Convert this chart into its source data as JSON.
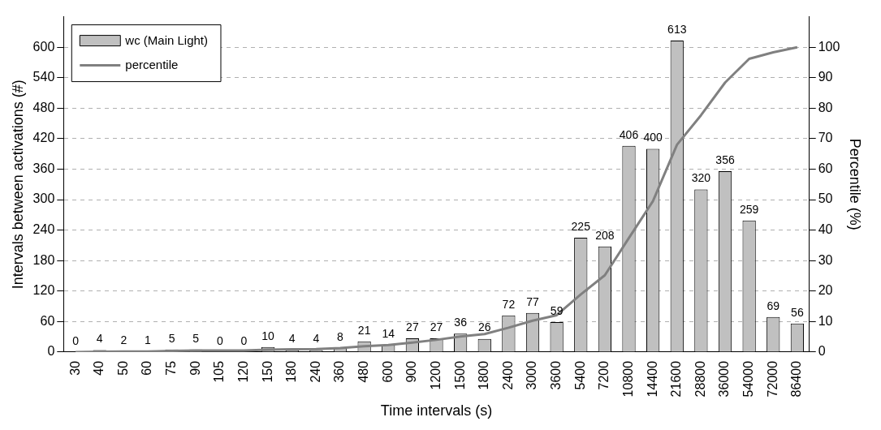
{
  "chart_data": {
    "type": "bar",
    "xlabel": "Time intervals (s)",
    "ylabel": "Intervals between activations (#)",
    "y2label": "Percentile (%)",
    "categories": [
      "30",
      "40",
      "50",
      "60",
      "75",
      "90",
      "105",
      "120",
      "150",
      "180",
      "240",
      "360",
      "480",
      "600",
      "900",
      "1200",
      "1500",
      "1800",
      "2400",
      "3000",
      "3600",
      "5400",
      "7200",
      "10800",
      "14400",
      "21600",
      "28800",
      "36000",
      "54000",
      "72000",
      "86400"
    ],
    "series": [
      {
        "name": "wc (Main Light)",
        "color": "#c0c0c0",
        "values": [
          0,
          4,
          2,
          1,
          5,
          5,
          0,
          0,
          10,
          4,
          4,
          8,
          21,
          14,
          27,
          27,
          36,
          26,
          72,
          77,
          59,
          225,
          208,
          406,
          400,
          613,
          320,
          356,
          259,
          69,
          56
        ],
        "value_labels": [
          "0",
          "4",
          "2",
          "1",
          "5",
          "5",
          "0",
          "0",
          "10",
          "4",
          "4",
          "8",
          "21",
          "14",
          "27",
          "27",
          "36",
          "26",
          "72",
          "77",
          "59",
          "225",
          "208",
          "406",
          "400",
          "613",
          "320",
          "356",
          "259",
          "69",
          "56"
        ]
      },
      {
        "name": "percentile",
        "type": "line",
        "axis": "y2",
        "color": "#808080",
        "values": [
          0,
          0.1,
          0.2,
          0.2,
          0.4,
          0.5,
          0.5,
          0.5,
          0.8,
          0.9,
          1.0,
          1.3,
          1.9,
          2.3,
          3.1,
          4.0,
          5.1,
          5.9,
          8.0,
          10.3,
          12.1,
          18.9,
          25.2,
          37.4,
          49.5,
          68.0,
          77.7,
          88.4,
          96.2,
          98.3,
          100
        ]
      }
    ],
    "ylim": [
      0,
      660
    ],
    "yticks": [
      0,
      60,
      120,
      180,
      240,
      300,
      360,
      420,
      480,
      540,
      600
    ],
    "y2lim": [
      0,
      110
    ],
    "y2ticks": [
      0,
      10,
      20,
      30,
      40,
      50,
      60,
      70,
      80,
      90,
      100
    ],
    "grid": "y",
    "legend": "top left",
    "marker": "none"
  }
}
